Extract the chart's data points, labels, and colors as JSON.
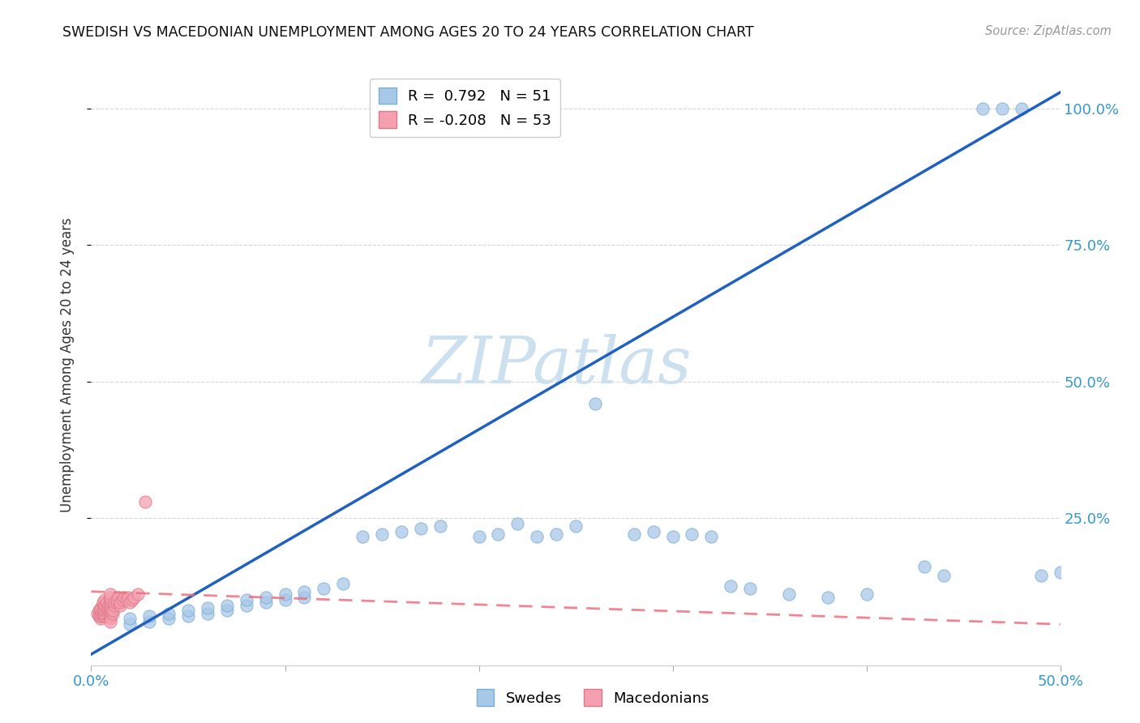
{
  "title": "SWEDISH VS MACEDONIAN UNEMPLOYMENT AMONG AGES 20 TO 24 YEARS CORRELATION CHART",
  "source": "Source: ZipAtlas.com",
  "ylabel": "Unemployment Among Ages 20 to 24 years",
  "xlim": [
    0.0,
    0.5
  ],
  "ylim": [
    -0.02,
    1.08
  ],
  "grid_color": "#cccccc",
  "background_color": "#ffffff",
  "watermark": "ZIPatlas",
  "watermark_color": "#cce0f0",
  "legend_R_swedish": "0.792",
  "legend_N_swedish": "51",
  "legend_R_macedonian": "-0.208",
  "legend_N_macedonian": "53",
  "swedish_color": "#a8c8e8",
  "swedish_edge_color": "#7aafd4",
  "macedonian_color": "#f4a0b0",
  "macedonian_edge_color": "#e07888",
  "swedish_line_color": "#2060c0",
  "macedonian_line_color": "#f07080",
  "sw_line_x0": 0.0,
  "sw_line_y0": 0.0,
  "sw_line_x1": 0.5,
  "sw_line_y1": 1.03,
  "mac_line_x0": 0.0,
  "mac_line_y0": 0.115,
  "mac_line_x1": 0.5,
  "mac_line_y1": 0.055,
  "sw_x": [
    0.02,
    0.02,
    0.03,
    0.03,
    0.04,
    0.04,
    0.05,
    0.05,
    0.06,
    0.06,
    0.07,
    0.07,
    0.08,
    0.08,
    0.09,
    0.09,
    0.1,
    0.1,
    0.11,
    0.11,
    0.12,
    0.13,
    0.14,
    0.15,
    0.16,
    0.17,
    0.18,
    0.2,
    0.21,
    0.22,
    0.23,
    0.24,
    0.25,
    0.26,
    0.28,
    0.29,
    0.3,
    0.31,
    0.32,
    0.33,
    0.34,
    0.36,
    0.38,
    0.4,
    0.43,
    0.44,
    0.46,
    0.47,
    0.48,
    0.49,
    0.5
  ],
  "sw_y": [
    0.055,
    0.065,
    0.06,
    0.07,
    0.065,
    0.075,
    0.07,
    0.08,
    0.075,
    0.085,
    0.08,
    0.09,
    0.09,
    0.1,
    0.095,
    0.105,
    0.1,
    0.11,
    0.105,
    0.115,
    0.12,
    0.13,
    0.215,
    0.22,
    0.225,
    0.23,
    0.235,
    0.215,
    0.22,
    0.24,
    0.215,
    0.22,
    0.235,
    0.46,
    0.22,
    0.225,
    0.215,
    0.22,
    0.215,
    0.125,
    0.12,
    0.11,
    0.105,
    0.11,
    0.16,
    0.145,
    1.0,
    1.0,
    1.0,
    0.145,
    0.15
  ],
  "mac_x": [
    0.003,
    0.004,
    0.004,
    0.005,
    0.005,
    0.005,
    0.005,
    0.005,
    0.006,
    0.006,
    0.006,
    0.006,
    0.006,
    0.007,
    0.007,
    0.007,
    0.007,
    0.007,
    0.008,
    0.008,
    0.008,
    0.008,
    0.009,
    0.009,
    0.01,
    0.01,
    0.01,
    0.01,
    0.01,
    0.01,
    0.01,
    0.01,
    0.01,
    0.01,
    0.01,
    0.011,
    0.011,
    0.012,
    0.012,
    0.013,
    0.013,
    0.014,
    0.015,
    0.015,
    0.016,
    0.017,
    0.018,
    0.019,
    0.02,
    0.021,
    0.022,
    0.024,
    0.028
  ],
  "mac_y": [
    0.075,
    0.07,
    0.08,
    0.065,
    0.07,
    0.075,
    0.08,
    0.085,
    0.07,
    0.075,
    0.08,
    0.09,
    0.095,
    0.07,
    0.075,
    0.08,
    0.09,
    0.1,
    0.075,
    0.08,
    0.085,
    0.095,
    0.08,
    0.09,
    0.065,
    0.07,
    0.075,
    0.08,
    0.085,
    0.09,
    0.095,
    0.1,
    0.105,
    0.11,
    0.06,
    0.075,
    0.08,
    0.09,
    0.095,
    0.095,
    0.1,
    0.105,
    0.09,
    0.095,
    0.1,
    0.105,
    0.1,
    0.105,
    0.095,
    0.1,
    0.105,
    0.11,
    0.28
  ]
}
